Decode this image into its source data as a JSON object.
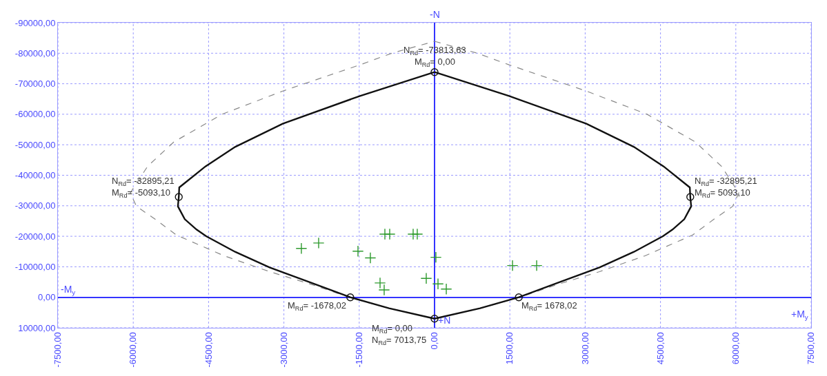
{
  "chart_data": {
    "type": "line",
    "xlim": [
      -7500,
      7500
    ],
    "xticks": [
      {
        "value": -7500,
        "label": "-7500,00"
      },
      {
        "value": -6000,
        "label": "-6000,00"
      },
      {
        "value": -4500,
        "label": "-4500,00"
      },
      {
        "value": -3000,
        "label": "-3000,00"
      },
      {
        "value": -1500,
        "label": "-1500,00"
      },
      {
        "value": 0,
        "label": "0,00"
      },
      {
        "value": 1500,
        "label": "1500,00"
      },
      {
        "value": 3000,
        "label": "3000,00"
      },
      {
        "value": 4500,
        "label": "4500,00"
      },
      {
        "value": 6000,
        "label": "6000,00"
      },
      {
        "value": 7500,
        "label": "7500,00"
      }
    ],
    "ylim": [
      10000,
      -90000
    ],
    "yticks": [
      {
        "value": -90000,
        "label": "-90000,00"
      },
      {
        "value": -80000,
        "label": "-80000,00"
      },
      {
        "value": -70000,
        "label": "-70000,00"
      },
      {
        "value": -60000,
        "label": "-60000,00"
      },
      {
        "value": -50000,
        "label": "-50000,00"
      },
      {
        "value": -40000,
        "label": "-40000,00"
      },
      {
        "value": -30000,
        "label": "-30000,00"
      },
      {
        "value": -20000,
        "label": "-20000,00"
      },
      {
        "value": -10000,
        "label": "-10000,00"
      },
      {
        "value": 0,
        "label": "0,00"
      },
      {
        "value": 10000,
        "label": "10000,00"
      }
    ],
    "grid": true,
    "series": [
      {
        "color": "#888888",
        "line_style": "dashed",
        "marker": "none",
        "x": [
          0,
          852,
          1484,
          3023,
          4232,
          5194,
          5716,
          6059,
          5936,
          5565,
          5139,
          4191,
          3284,
          2446,
          1700,
          907,
          0
        ],
        "values": [
          -83900,
          -80000,
          -76200,
          -67600,
          -60000,
          -50900,
          -42900,
          -34200,
          -29800,
          -25600,
          -20400,
          -13600,
          -8400,
          -4200,
          0,
          3600,
          7000
        ]
      },
      {
        "color": "#888888",
        "line_style": "dashed",
        "marker": "none",
        "x": [
          0,
          -907,
          -1700,
          -2446,
          -3284,
          -4191,
          -5139,
          -5565,
          -5936,
          -6059,
          -5716,
          -5194,
          -4232,
          -3023,
          -1484,
          -852,
          0
        ],
        "values": [
          7000,
          3600,
          0,
          -4200,
          -8400,
          -13600,
          -20400,
          -25600,
          -29800,
          -34200,
          -42900,
          -50900,
          -60000,
          -67600,
          -76200,
          -80000,
          -83900
        ]
      },
      {
        "color": "#111111",
        "line_style": "solid",
        "marker": "none",
        "x": [
          0,
          1484,
          3023,
          3971,
          4562,
          5084,
          5093.1,
          5111,
          4974,
          4740,
          4548,
          3971,
          3284,
          2446,
          1678.02,
          907,
          0
        ],
        "values": [
          -73813.63,
          -66000,
          -56900,
          -49300,
          -42900,
          -36000,
          -32895.21,
          -29800,
          -25600,
          -22200,
          -20000,
          -14900,
          -9800,
          -4700,
          0,
          3600,
          7013.75
        ]
      },
      {
        "color": "#111111",
        "line_style": "solid",
        "marker": "none",
        "x": [
          0,
          -907,
          -1678.02,
          -2446,
          -3284,
          -3971,
          -4548,
          -4740,
          -4974,
          -5111,
          -5093.1,
          -5084,
          -4562,
          -3971,
          -3023,
          -1484,
          0
        ],
        "values": [
          7013.75,
          3600,
          0,
          -4700,
          -9800,
          -14900,
          -20000,
          -22200,
          -25600,
          -29800,
          -32895.21,
          -36000,
          -42900,
          -49300,
          -56900,
          -66000,
          -73813.63
        ]
      },
      {
        "type": "scatter",
        "color": "#111111",
        "marker": "circle",
        "x": [
          0,
          5093.1,
          1678.02,
          0,
          -1678.02,
          -5093.1
        ],
        "values": [
          -73813.63,
          -32895.21,
          0,
          7013.75,
          0,
          -32895.21
        ]
      },
      {
        "type": "scatter",
        "color": "#2e9a2e",
        "marker": "cross",
        "x": [
          -2652,
          -2308,
          -1525,
          -1278,
          -1085,
          -1003,
          -989,
          -893,
          -426,
          -344,
          27,
          -165,
          69,
          234,
          1553,
          2034
        ],
        "values": [
          -16000,
          -17800,
          -15100,
          -12900,
          -4700,
          -2400,
          -20700,
          -20700,
          -20700,
          -20700,
          -13100,
          -6200,
          -4400,
          -2700,
          -10400,
          -10400
        ]
      }
    ],
    "annotations": [
      {
        "text": "N$_{Rd}$= -73813,63\nM$_{Rd}$= 0,00",
        "x": 0,
        "y": -73813.63
      },
      {
        "text": "N$_{Rd}$= -32895,21\nM$_{Rd}$= 5093,10",
        "x": 5093.1,
        "y": -32895.21
      },
      {
        "text": "N$_{Rd}$= -32895,21\nM$_{Rd}$= -5093,10",
        "x": -5093.1,
        "y": -32895.21
      },
      {
        "text": "M$_{Rd}$= 1678,02",
        "x": 1678.02,
        "y": 0
      },
      {
        "text": "M$_{Rd}$= -1678,02",
        "x": -1678.02,
        "y": 0
      },
      {
        "text": "M$_{Rd}$= 0,00\nN$_{Rd}$= 7013,75",
        "x": 0,
        "y": 7013.75
      },
      "-N",
      "+N",
      "-M$_{y}$",
      "+M$_{y}$"
    ]
  }
}
